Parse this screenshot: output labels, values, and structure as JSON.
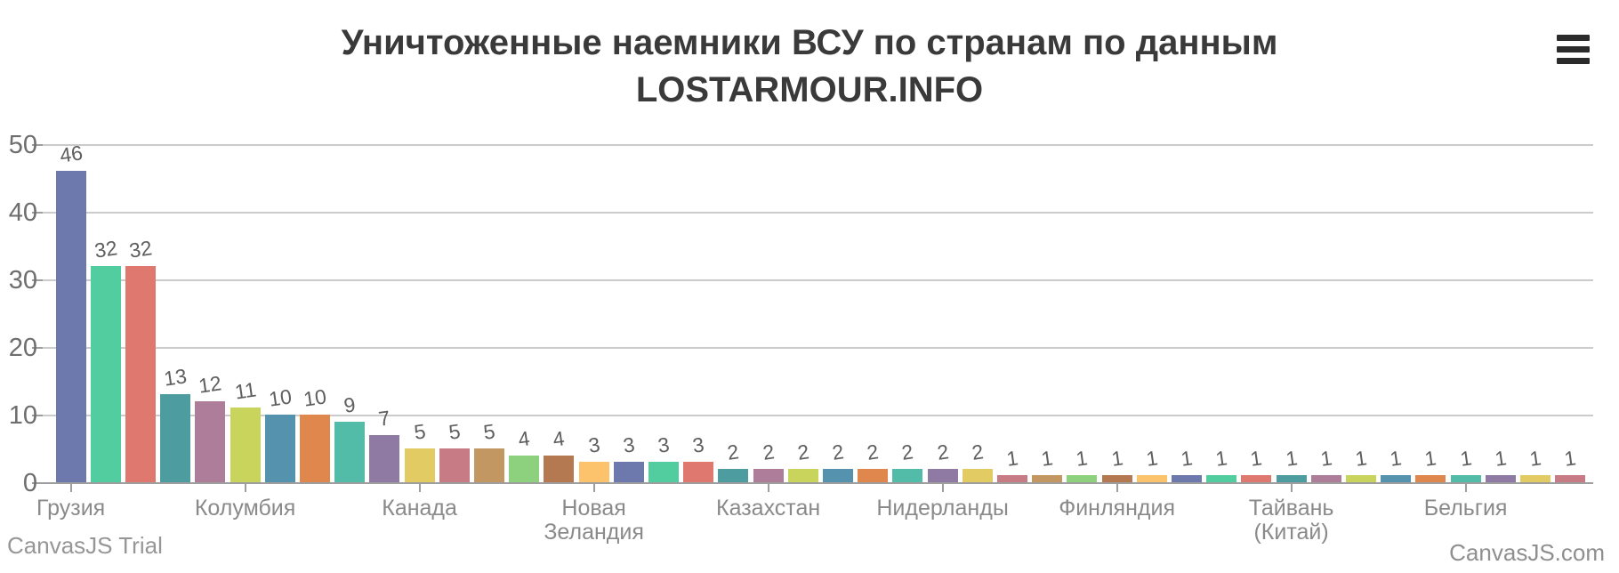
{
  "branding": {
    "trial_label": "CanvasJS Trial",
    "site_label": "CanvasJS.com"
  },
  "menu": {
    "icon": "hamburger-menu"
  },
  "chart_data": {
    "type": "bar",
    "title": "Уничтоженные наемники ВСУ по странам по данным LOSTARMOUR.INFO",
    "title_lines": [
      "Уничтоженные наемники ВСУ по странам по данным",
      "LOSTARMOUR.INFO"
    ],
    "xlabel": "",
    "ylabel": "",
    "ylim": [
      0,
      50
    ],
    "y_ticks": [
      0,
      10,
      20,
      30,
      40,
      50
    ],
    "grid": true,
    "legend": false,
    "bar_value_labels": true,
    "x_label_interval": 5,
    "title_color": "#3a3a3a",
    "palette_cycle": [
      "#6D78AD",
      "#51CDA0",
      "#DF7970",
      "#4C9CA0",
      "#AE7D99",
      "#C9D45C",
      "#5592AD",
      "#DF874D",
      "#52BCA8",
      "#8E7AA3",
      "#E3CB64",
      "#C77B85",
      "#C39762",
      "#8DD17E",
      "#B57952",
      "#FCC26C"
    ],
    "bars": [
      {
        "value": 46,
        "label": "Грузия"
      },
      {
        "value": 32
      },
      {
        "value": 32
      },
      {
        "value": 13
      },
      {
        "value": 12
      },
      {
        "value": 11,
        "label": "Колумбия"
      },
      {
        "value": 10
      },
      {
        "value": 10
      },
      {
        "value": 9
      },
      {
        "value": 7
      },
      {
        "value": 5,
        "label": "Канада"
      },
      {
        "value": 5
      },
      {
        "value": 5
      },
      {
        "value": 4
      },
      {
        "value": 4
      },
      {
        "value": 3,
        "label": "Новая Зеландия"
      },
      {
        "value": 3
      },
      {
        "value": 3
      },
      {
        "value": 3
      },
      {
        "value": 2
      },
      {
        "value": 2,
        "label": "Казахстан"
      },
      {
        "value": 2
      },
      {
        "value": 2
      },
      {
        "value": 2
      },
      {
        "value": 2
      },
      {
        "value": 2,
        "label": "Нидерланды"
      },
      {
        "value": 2
      },
      {
        "value": 1
      },
      {
        "value": 1
      },
      {
        "value": 1
      },
      {
        "value": 1,
        "label": "Финляндия"
      },
      {
        "value": 1
      },
      {
        "value": 1
      },
      {
        "value": 1
      },
      {
        "value": 1
      },
      {
        "value": 1,
        "label": "Тайвань (Китай)"
      },
      {
        "value": 1
      },
      {
        "value": 1
      },
      {
        "value": 1
      },
      {
        "value": 1
      },
      {
        "value": 1,
        "label": "Бельгия"
      },
      {
        "value": 1
      },
      {
        "value": 1
      },
      {
        "value": 1
      }
    ]
  }
}
